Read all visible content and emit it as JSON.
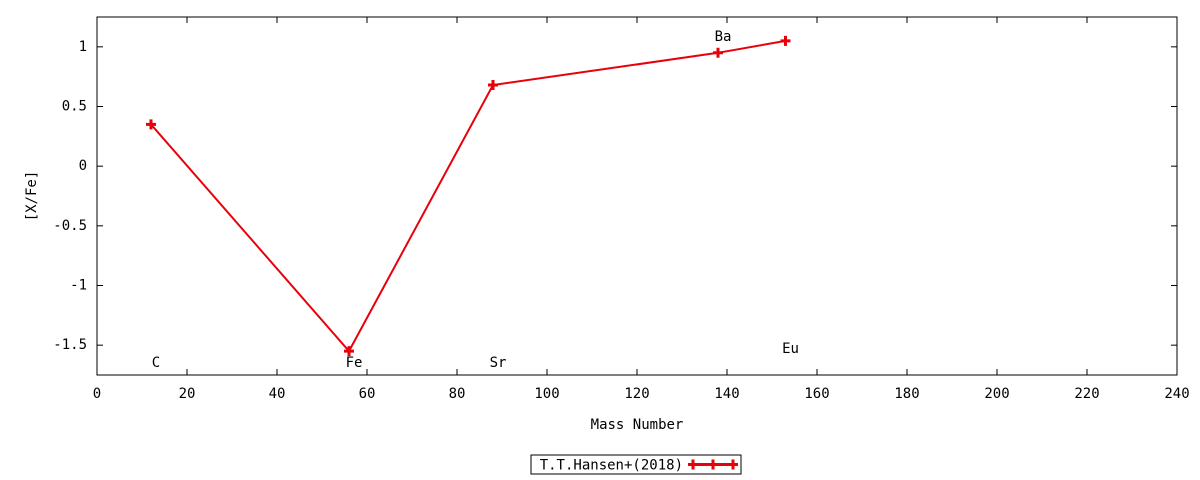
{
  "chart_data": {
    "type": "line",
    "x_label": "Mass Number",
    "y_label": "[X/Fe]",
    "x": [
      12,
      56,
      88,
      138,
      153
    ],
    "point_labels": [
      "C",
      "Fe",
      "Sr",
      "Ba",
      "Eu"
    ],
    "series": [
      {
        "name": "T.T.Hansen+(2018)",
        "color": "#e8000b",
        "values": [
          0.35,
          -1.55,
          0.68,
          0.95,
          1.05
        ]
      }
    ],
    "xlim": [
      0,
      240
    ],
    "xticks": [
      0,
      20,
      40,
      60,
      80,
      100,
      120,
      140,
      160,
      180,
      200,
      220,
      240
    ],
    "ylim": [
      -1.75,
      1.25
    ],
    "yticks": [
      -1.5,
      -1,
      -0.5,
      0,
      0.5,
      1
    ],
    "grid": false,
    "legend": "bottom"
  }
}
